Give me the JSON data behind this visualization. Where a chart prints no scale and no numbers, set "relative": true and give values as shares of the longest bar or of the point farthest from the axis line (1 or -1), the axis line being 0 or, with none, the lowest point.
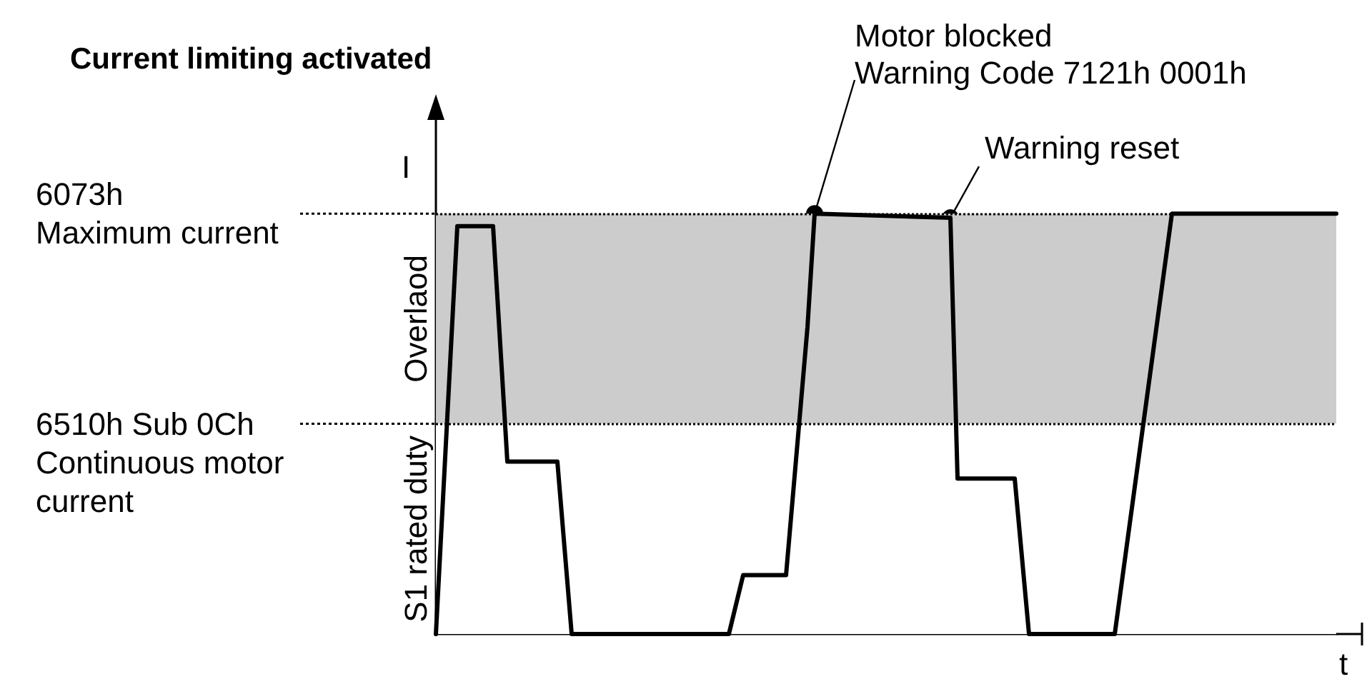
{
  "chart_data": {
    "type": "line",
    "relative": true,
    "title": "Current limiting activated",
    "xlabel": "t",
    "ylabel": "I",
    "categories": [
      null,
      null,
      null,
      null,
      null,
      null,
      null,
      null,
      null,
      null,
      null,
      null,
      null,
      null,
      null,
      null,
      null,
      null,
      null,
      null,
      null,
      null,
      null,
      null,
      null,
      null,
      null,
      null,
      null,
      null,
      null,
      null,
      null,
      null,
      null,
      null,
      null,
      null,
      null,
      null,
      null,
      null,
      null,
      null,
      null,
      null,
      null,
      null,
      null,
      null,
      null,
      null,
      null,
      null,
      null,
      null,
      null,
      null,
      null,
      null,
      null,
      null,
      null,
      null,
      null,
      null,
      null,
      null,
      null,
      null,
      null,
      null,
      null,
      null,
      null,
      null,
      null,
      null,
      null,
      null,
      null,
      null,
      null,
      null,
      null,
      null,
      null,
      null,
      null,
      null,
      null,
      null,
      null,
      null,
      null,
      null,
      null,
      null,
      null,
      null,
      null,
      null,
      null,
      null,
      null,
      null,
      null,
      null,
      null,
      null,
      null,
      null,
      null,
      null,
      null,
      null,
      null,
      null,
      null,
      null,
      null,
      null,
      null,
      null,
      null,
      null,
      null
    ],
    "series": [
      {
        "color": "#000000",
        "line_style": "solid",
        "values": [
          0,
          null,
          null,
          0.97,
          null,
          null,
          null,
          null,
          0.97,
          null,
          0.41,
          null,
          null,
          null,
          null,
          null,
          null,
          0.41,
          null,
          0,
          null,
          null,
          null,
          null,
          null,
          null,
          null,
          null,
          null,
          null,
          null,
          null,
          null,
          null,
          null,
          null,
          null,
          null,
          null,
          null,
          null,
          0,
          null,
          0.14,
          null,
          null,
          null,
          null,
          null,
          0.14,
          null,
          null,
          0.73,
          1,
          null,
          null,
          null,
          null,
          null,
          null,
          null,
          null,
          null,
          null,
          null,
          null,
          null,
          null,
          null,
          null,
          null,
          null,
          0.99,
          0.37,
          null,
          null,
          null,
          null,
          null,
          null,
          null,
          0.37,
          null,
          0,
          null,
          null,
          null,
          null,
          null,
          null,
          null,
          null,
          null,
          null,
          null,
          0,
          null,
          null,
          null,
          null,
          null,
          null,
          null,
          1,
          null,
          null,
          null,
          null,
          null,
          null,
          null,
          null,
          null,
          null,
          null,
          null,
          null,
          null,
          null,
          null,
          null,
          null,
          null,
          null,
          null,
          null,
          1
        ]
      }
    ],
    "ref_lines": [
      {
        "axis": "y",
        "value": 1,
        "label": "6073h\nMaximum current",
        "line_style": "dotted",
        "color": "#000000"
      },
      {
        "axis": "y",
        "value": 0.5,
        "label": "6510h Sub 0Ch\nContinuous motor\ncurrent",
        "line_style": "dotted",
        "color": "#000000"
      }
    ],
    "bands": [
      {
        "axis": "y",
        "from": 0.5,
        "to": 1,
        "label": "Overlaod",
        "color": "#cccccc"
      },
      {
        "axis": "y",
        "from": 0,
        "to": 0.5,
        "label": "S1 rated duty",
        "color": "#ffffff"
      }
    ],
    "annotations": [
      "Motor blocked\nWarning Code 7121h 0001h",
      "Warning reset"
    ]
  }
}
